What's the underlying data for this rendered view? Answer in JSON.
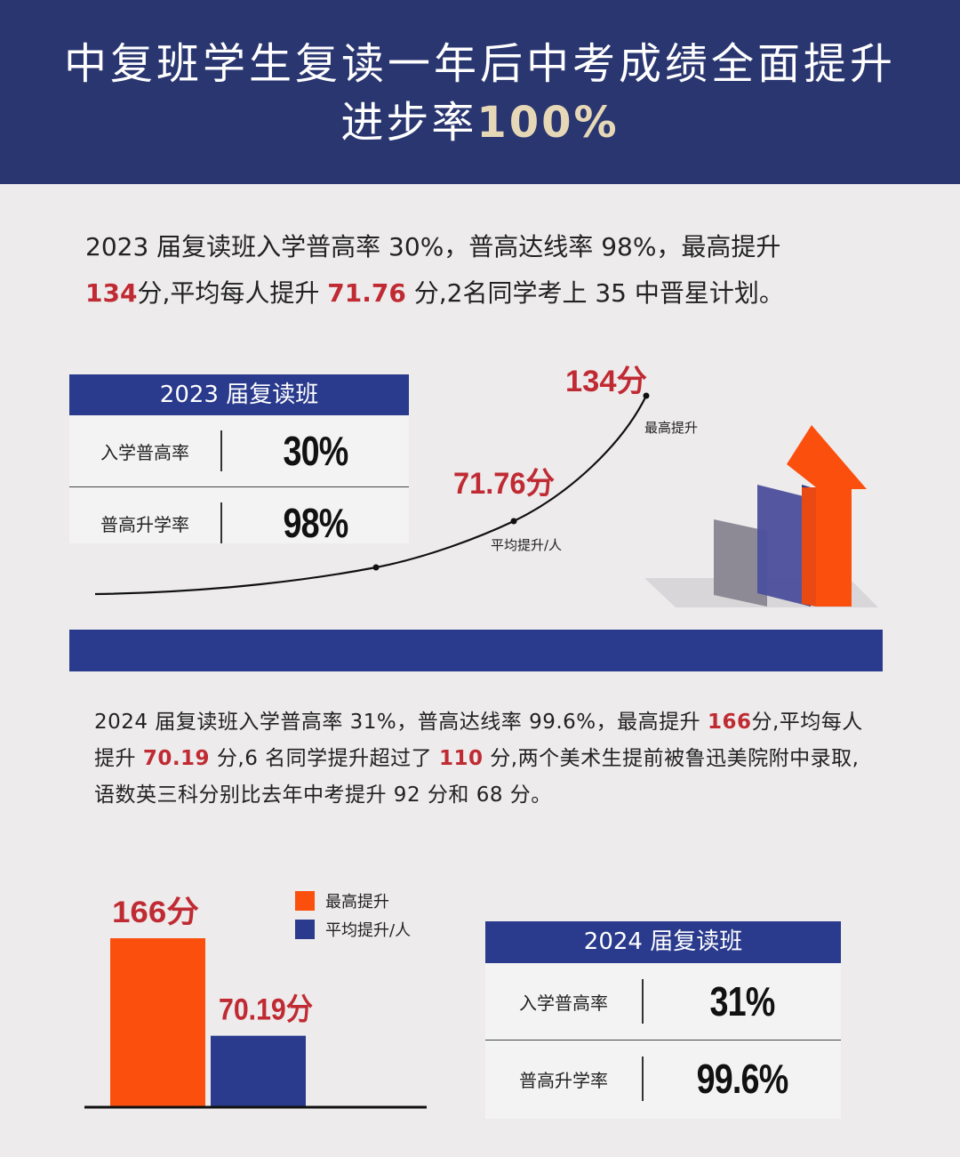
{
  "header": {
    "title_line1": "中复班学生复读一年后中考成绩全面提升",
    "title_line2_prefix": "进步率",
    "title_line2_accent": "100%"
  },
  "section_2023": {
    "para": {
      "s1": "2023 届复读班入学普高率 30%，普高达线率 98%，最高提升",
      "s2": "134",
      "s3": "分,平均每人提升 ",
      "s4": "71.76",
      "s5": " 分,2名同学考上 35 中晋星计划。"
    },
    "table": {
      "title": "2023 届复读班",
      "rows": [
        {
          "label": "入学普高率",
          "value": "30%"
        },
        {
          "label": "普高升学率",
          "value": "98%"
        }
      ]
    }
  },
  "section_2024": {
    "para": {
      "s1": "2024 届复读班入学普高率 31%，普高达线率 99.6%，最高提升 ",
      "s2": "166",
      "s3": "分,平均每人提升 ",
      "s4": "70.19",
      "s5": " 分,6 名同学提升超过了 ",
      "s6": "110",
      "s7": " 分,两个美术生提前被鲁迅美院附中录取,语数英三科分别比去年中考提升 92 分和 68 分。"
    },
    "table": {
      "title": "2024 届复读班",
      "rows": [
        {
          "label": "入学普高率",
          "value": "31%"
        },
        {
          "label": "普高升学率",
          "value": "99.6%"
        }
      ]
    }
  },
  "colors": {
    "navy": "#2a3a8c",
    "header_navy": "#2a3670",
    "orange": "#fb4f0e",
    "red_text": "#c02b33",
    "accent_gold": "#e6d8b7"
  },
  "chart_data": [
    {
      "type": "line",
      "series": [
        {
          "values": [
            71.76,
            134
          ]
        }
      ],
      "point_labels": [
        "71.76分",
        "134分"
      ],
      "annotations": [
        "平均提升/人",
        "最高提升"
      ]
    },
    {
      "type": "bar",
      "categories": [
        "最高提升",
        "平均提升/人"
      ],
      "values": [
        166,
        70.19
      ],
      "data_labels": [
        "166分",
        "70.19分"
      ],
      "legend": [
        "最高提升",
        "平均提升/人"
      ],
      "legend_position": "top-right",
      "colors": [
        "#fb4f0e",
        "#2a3a8c"
      ]
    }
  ]
}
